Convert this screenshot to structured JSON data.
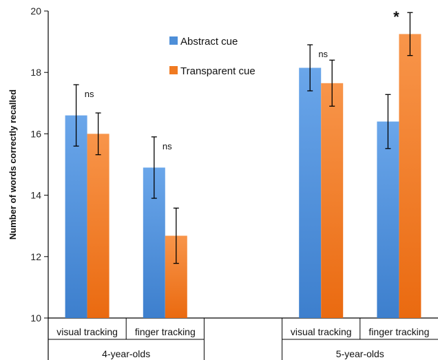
{
  "chart_data": {
    "type": "bar",
    "ylabel": "Number of words correctly recalled",
    "ylim": [
      10,
      20
    ],
    "yticks": [
      "10",
      "12",
      "14",
      "16",
      "18",
      "20"
    ],
    "groups": [
      {
        "label": "4-year-olds",
        "categories": [
          "visual tracking",
          "finger tracking"
        ]
      },
      {
        "label": "5-year-olds",
        "categories": [
          "visual tracking",
          "finger tracking"
        ]
      }
    ],
    "categories": [
      "visual tracking",
      "finger tracking",
      "",
      "visual tracking",
      "finger tracking"
    ],
    "series": [
      {
        "name": "Abstract cue",
        "color": "#4e8fd8",
        "values": [
          16.6,
          14.9,
          null,
          18.15,
          16.4
        ],
        "errors": [
          1.0,
          1.0,
          null,
          0.75,
          0.88
        ]
      },
      {
        "name": "Transparent cue",
        "color": "#f07a22",
        "values": [
          16.0,
          12.68,
          null,
          17.65,
          19.25
        ],
        "errors": [
          0.68,
          0.9,
          null,
          0.75,
          0.7
        ]
      }
    ],
    "annotations": [
      "ns",
      "ns",
      "",
      "ns",
      "*"
    ],
    "legend_position": "top-center",
    "grid": false
  }
}
